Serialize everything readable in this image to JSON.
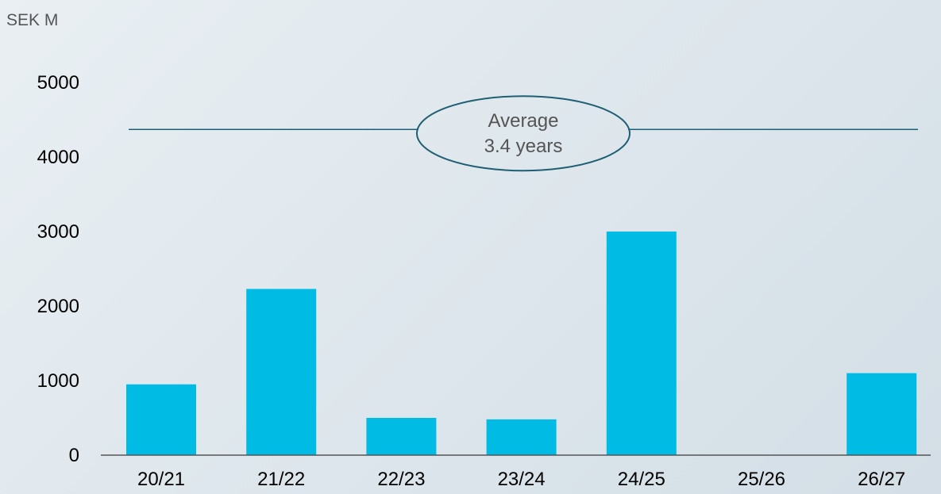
{
  "chart_data": {
    "type": "bar",
    "unit_label": "SEK M",
    "categories": [
      "20/21",
      "21/22",
      "22/23",
      "23/24",
      "24/25",
      "25/26",
      "26/27"
    ],
    "values": [
      950,
      2230,
      500,
      480,
      3000,
      0,
      1100
    ],
    "ylim": [
      0,
      5000
    ],
    "yticks": [
      0,
      1000,
      2000,
      3000,
      4000,
      5000
    ],
    "grid": false,
    "bar_color": "#00bce4",
    "reference_line": {
      "value": 4370,
      "color": "#1f5f73",
      "label_line1": "Average",
      "label_line2": "3.4 years"
    }
  }
}
